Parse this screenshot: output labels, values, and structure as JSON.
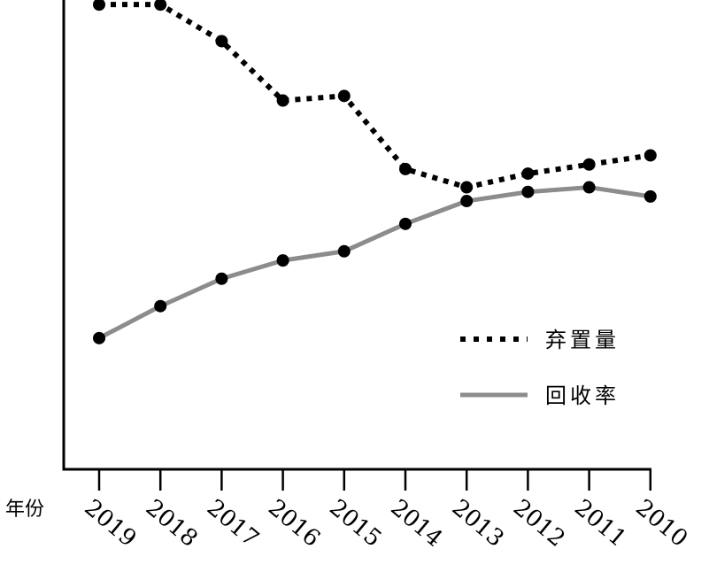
{
  "chart_data": {
    "type": "line",
    "xlabel": "年份",
    "ylabel": "",
    "title": "",
    "categories": [
      "2019",
      "2018",
      "2017",
      "2016",
      "2015",
      "2014",
      "2013",
      "2012",
      "2011",
      "2010"
    ],
    "ylim": [
      0,
      100
    ],
    "grid": false,
    "legend_position": "bottom-right",
    "series": [
      {
        "name": "弃置量",
        "style": "dotted",
        "color": "#000000",
        "values": [
          99,
          99,
          91,
          78,
          79,
          63,
          59,
          62,
          64,
          66
        ]
      },
      {
        "name": "回收率",
        "style": "solid",
        "color": "#8c8c8c",
        "values": [
          26,
          33,
          39,
          43,
          45,
          51,
          56,
          58,
          59,
          57
        ]
      }
    ]
  }
}
